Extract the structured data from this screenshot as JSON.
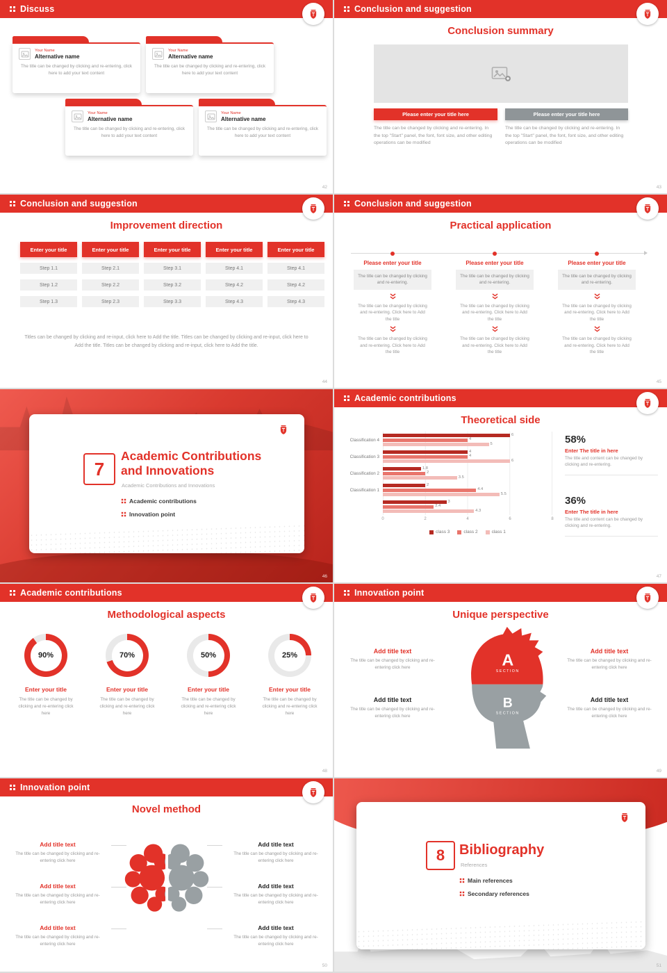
{
  "meta": {
    "accent_red": "#e23229",
    "dark_red": "#c4271e",
    "gray_button": "#8f9598",
    "chart_class3_color": "#b52a22",
    "chart_class2_color": "#e9756c",
    "chart_class1_color": "#f3bcb8"
  },
  "icons": {
    "university-logo-icon": "shield-crest",
    "header-bullet-icon": "four-dots-grid",
    "image-icon": "picture",
    "image-placeholder-icon": "picture-with-plus",
    "double-chevron-down-icon": "double chevron pointing down",
    "timeline-arrow-icon": "right arrow line"
  },
  "s42": {
    "header": "Discuss",
    "page": "42",
    "cards": [
      {
        "name_label": "Your Name",
        "alt_name": "Alternative name",
        "body": "The title can be changed by clicking and re-entering, click here to add your text content"
      },
      {
        "name_label": "Your Name",
        "alt_name": "Alternative name",
        "body": "The title can be changed by clicking and re-entering, click here to add your text content"
      },
      {
        "name_label": "Your Name",
        "alt_name": "Alternative name",
        "body": "The title can be changed by clicking and re-entering, click here to add your text content"
      },
      {
        "name_label": "Your Name",
        "alt_name": "Alternative name",
        "body": "The title can be changed by clicking and re-entering, click here to add your text content"
      }
    ]
  },
  "s43": {
    "header": "Conclusion and suggestion",
    "page": "43",
    "title": "Conclusion summary",
    "button_left": "Please enter your title here",
    "button_right": "Please enter your title here",
    "body_left": "The title can be changed by clicking and re-entering. In the top \"Start\" panel, the font, font size, and other editing operations can be modified",
    "body_right": "The title can be changed by clicking and re-entering. In the top \"Start\" panel, the font, font size, and other editing operations can be modified"
  },
  "s44": {
    "header": "Conclusion and suggestion",
    "page": "44",
    "title": "Improvement direction",
    "button_label": "Enter your title",
    "columns": [
      {
        "steps": [
          "Step 1.1",
          "Step 1.2",
          "Step 1.3"
        ]
      },
      {
        "steps": [
          "Step 2.1",
          "Step 2.2",
          "Step 2.3"
        ]
      },
      {
        "steps": [
          "Step 3.1",
          "Step 3.2",
          "Step 3.3"
        ]
      },
      {
        "steps": [
          "Step 4.1",
          "Step 4.2",
          "Step 4.3"
        ]
      },
      {
        "steps": [
          "Step 4.1",
          "Step 4.2",
          "Step 4.3"
        ]
      }
    ],
    "caption": "Titles can be changed by clicking and re-input, click here to Add the title. Titles can be changed by clicking and re-input, click here to Add the title. Titles can be changed by clicking and re-input, click here to Add the title."
  },
  "s45": {
    "header": "Conclusion and suggestion",
    "page": "45",
    "title": "Practical application",
    "col_title": "Please enter your title",
    "box_text": "The title can be changed by clicking and re-entering.",
    "mid_text": "The title can be changed by clicking and re-entering. Click here to Add the title",
    "bottom_text": "The title can be changed by clicking and re-entering. Click here to Add the title"
  },
  "s46": {
    "page": "46",
    "number": "7",
    "title_line1": "Academic Contributions",
    "title_line2": "and Innovations",
    "subtitle": "Academic Contributions and Innovations",
    "bullets": [
      "Academic contributions",
      "Innovation point"
    ]
  },
  "s47": {
    "header": "Academic contributions",
    "page": "47",
    "title": "Theoretical side",
    "stats": [
      {
        "pct": "58%",
        "title": "Enter The title in here",
        "body": "The title and content can be changed by clicking and re-entering."
      },
      {
        "pct": "36%",
        "title": "Enter The title in here",
        "body": "The title and content can be changed by clicking and re-entering."
      }
    ]
  },
  "s48": {
    "header": "Academic contributions",
    "page": "48",
    "title": "Methodological aspects",
    "donuts": [
      {
        "pct": 90,
        "label": "90%",
        "title": "Enter your title",
        "body": "The title can be changed by clicking and re-entering click here"
      },
      {
        "pct": 70,
        "label": "70%",
        "title": "Enter your title",
        "body": "The title can be changed by clicking and re-entering click here"
      },
      {
        "pct": 50,
        "label": "50%",
        "title": "Enter your title",
        "body": "The title can be changed by clicking and re-entering click here"
      },
      {
        "pct": 25,
        "label": "25%",
        "title": "Enter your title",
        "body": "The title can be changed by clicking and re-entering click here"
      }
    ]
  },
  "s49": {
    "header": "Innovation point",
    "page": "49",
    "title": "Unique perspective",
    "sections": [
      {
        "letter": "A",
        "label": "SECTION"
      },
      {
        "letter": "B",
        "label": "SECTION"
      }
    ],
    "left": [
      {
        "title": "Add title text",
        "body": "The title can be changed by clicking and re-entering click here"
      },
      {
        "title": "Add title text",
        "body": "The title can be changed by clicking and re-entering click here"
      }
    ],
    "right": [
      {
        "title": "Add title text",
        "body": "The title can be changed by clicking and re-entering click here"
      },
      {
        "title": "Add title text",
        "body": "The title can be changed by clicking and re-entering click here"
      }
    ]
  },
  "s50": {
    "header": "Innovation point",
    "page": "50",
    "title": "Novel method",
    "left": [
      {
        "title": "Add title text",
        "body": "The title can be changed by clicking and re-entering click here"
      },
      {
        "title": "Add title text",
        "body": "The title can be changed by clicking and re-entering click here"
      },
      {
        "title": "Add title text",
        "body": "The title can be changed by clicking and re-entering click here"
      }
    ],
    "right": [
      {
        "title": "Add title text",
        "body": "The title can be changed by clicking and re-entering click here"
      },
      {
        "title": "Add title text",
        "body": "The title can be changed by clicking and re-entering click here"
      },
      {
        "title": "Add title text",
        "body": "The title can be changed by clicking and re-entering click here"
      }
    ]
  },
  "s51": {
    "page": "51",
    "number": "8",
    "title": "Bibliography",
    "subtitle": "References",
    "bullets": [
      "Main references",
      "Secondary references"
    ]
  },
  "chart_data": {
    "type": "bar",
    "orientation": "horizontal",
    "title": "Theoretical side",
    "categories": [
      "Classification 4",
      "Classification 3",
      "Classification 2",
      "Classification 1",
      ""
    ],
    "series": [
      {
        "name": "class 3",
        "color": "#b52a22",
        "values": [
          6,
          4,
          1.8,
          2,
          3
        ]
      },
      {
        "name": "class 2",
        "color": "#e9756c",
        "values": [
          4,
          4,
          2,
          4.4,
          2.4
        ]
      },
      {
        "name": "class 1",
        "color": "#f3bcb8",
        "values": [
          5,
          6,
          3.5,
          5.5,
          4.3
        ]
      }
    ],
    "xlim": [
      0,
      8
    ],
    "xticks": [
      0,
      2,
      4,
      6,
      8
    ],
    "grid": true,
    "legend_position": "bottom"
  }
}
